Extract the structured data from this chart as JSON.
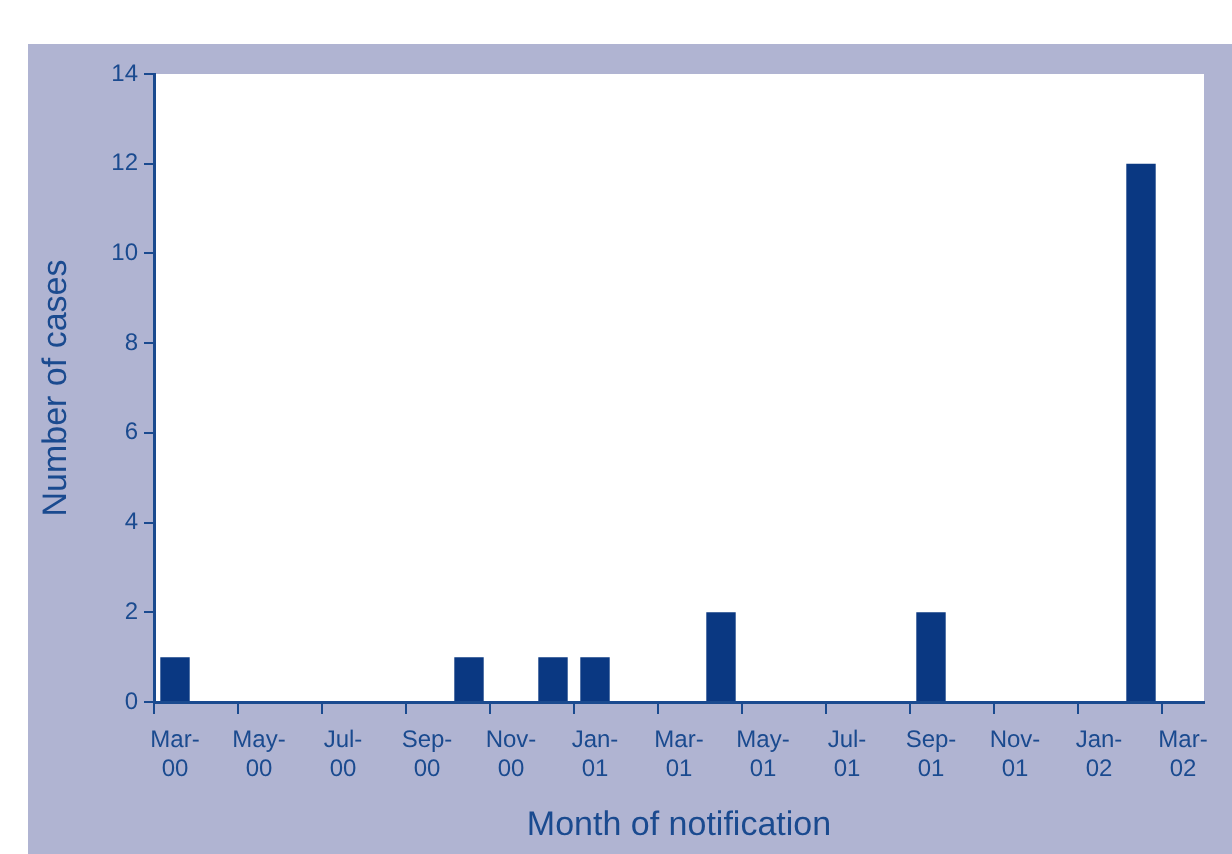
{
  "chart_data": {
    "type": "bar",
    "xlabel": "Month of notification",
    "ylabel": "Number of cases",
    "categories": [
      "Mar-00",
      null,
      "May-00",
      null,
      "Jul-00",
      null,
      "Sep-00",
      null,
      "Nov-00",
      null,
      "Jan-01",
      null,
      "Mar-01",
      null,
      "May-01",
      null,
      "Jul-01",
      null,
      "Sep-01",
      null,
      "Nov-01",
      null,
      "Jan-02",
      null,
      "Mar-02"
    ],
    "values": [
      1,
      0,
      0,
      0,
      0,
      0,
      0,
      1,
      0,
      1,
      1,
      0,
      0,
      2,
      0,
      0,
      0,
      0,
      2,
      0,
      0,
      0,
      0,
      12,
      0
    ],
    "color": "#0a3882",
    "ylim": [
      0,
      14
    ],
    "yticks": [
      0,
      2,
      4,
      6,
      8,
      10,
      12,
      14
    ],
    "grid": false,
    "legend": false
  }
}
